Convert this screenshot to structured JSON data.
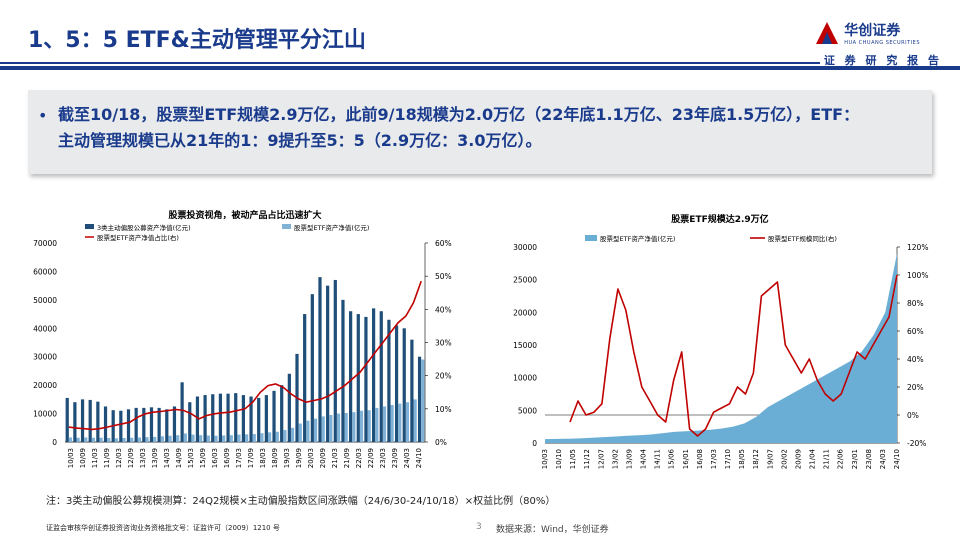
{
  "header": {
    "title": "1、5：5 ETF&主动管理平分江山",
    "logo_main": "华创证券",
    "logo_sub": "HUA CHUANG SECURITIES",
    "report_tag": "证 券 研 究 报 告"
  },
  "bullet": {
    "line1": "截至10/18，股票型ETF规模2.9万亿，此前9/18规模为2.0万亿（22年底1.1万亿、23年底1.5万亿），ETF：",
    "line2": "主动管理规模已从21年的1：9提升至5：5（2.9万亿：3.0万亿）。"
  },
  "note": "注：3类主动偏股公募规模测算：24Q2规模×主动偏股指数区间涨跌幅（24/6/30-24/10/18）×权益比例（80%）",
  "footer": {
    "license": "证监会审核华创证券投资咨询业务资格批文号：证监许可（2009）1210 号",
    "page": "3",
    "source": "数据来源：Wind，华创证券"
  },
  "colors": {
    "primary": "#1a3b8c",
    "dark_bar": "#1f4e79",
    "light_bar": "#7fb2d6",
    "line": "#c00000",
    "area": "#6aaed6"
  },
  "chart_data": [
    {
      "type": "bar",
      "title": "股票投资视角，被动产品占比迅速扩大",
      "legend": [
        "3类主动偏股公募资产净值(亿元)",
        "股票型ETF资产净值(亿元)",
        "股票型ETF资产净值占比(右)"
      ],
      "left_ylim": [
        0,
        70000
      ],
      "left_ticks": [
        "0",
        "10000",
        "20000",
        "30000",
        "40000",
        "50000",
        "60000",
        "70000"
      ],
      "right_ylim": [
        0,
        60
      ],
      "right_ticks": [
        "0%",
        "10%",
        "20%",
        "30%",
        "40%",
        "50%",
        "60%"
      ],
      "x_ticks": [
        "10/03",
        "10/09",
        "11/03",
        "11/09",
        "12/03",
        "12/09",
        "13/03",
        "13/09",
        "14/03",
        "14/09",
        "15/03",
        "15/09",
        "16/03",
        "16/09",
        "17/03",
        "17/09",
        "18/03",
        "18/09",
        "19/03",
        "19/09",
        "20/03",
        "20/09",
        "21/03",
        "21/09",
        "22/03",
        "22/09",
        "23/03",
        "23/09",
        "24/03",
        "24/10"
      ],
      "active": [
        15500,
        14000,
        15000,
        14800,
        14200,
        12500,
        11200,
        11000,
        11500,
        12000,
        12000,
        12200,
        12000,
        11500,
        12500,
        21000,
        14000,
        16000,
        16500,
        16800,
        17000,
        17000,
        17200,
        16500,
        16000,
        15500,
        16500,
        18000,
        20000,
        24000,
        31000,
        45000,
        52000,
        58000,
        55000,
        57000,
        50000,
        46000,
        45000,
        44000,
        47000,
        46000,
        43000,
        41000,
        40000,
        36000,
        30000
      ],
      "etf": [
        1600,
        1500,
        1600,
        1500,
        1500,
        1400,
        1300,
        1400,
        1500,
        1600,
        1700,
        1800,
        2000,
        2200,
        2400,
        3000,
        2600,
        2400,
        2300,
        2200,
        2300,
        2400,
        2600,
        2700,
        2800,
        3100,
        3400,
        3600,
        4200,
        5000,
        6500,
        7500,
        8200,
        9000,
        9500,
        10000,
        10200,
        10500,
        11000,
        11200,
        12000,
        12500,
        13000,
        13500,
        14000,
        15000,
        29000
      ],
      "ratio": [
        4.5,
        4.2,
        4.0,
        3.8,
        4.0,
        4.5,
        5.0,
        5.5,
        6.0,
        7.5,
        8.5,
        9.0,
        9.2,
        9.5,
        9.8,
        9.5,
        8.5,
        7.0,
        8.0,
        8.5,
        8.8,
        9.0,
        9.5,
        10.0,
        12.0,
        15.0,
        17.0,
        17.5,
        16.5,
        14.5,
        13.0,
        12.0,
        12.5,
        13.0,
        14.0,
        15.5,
        17.0,
        19.0,
        21.0,
        24.0,
        27.0,
        30.0,
        33.0,
        36.0,
        38.0,
        42.0,
        48.5
      ]
    },
    {
      "type": "area",
      "title": "股票ETF规模达2.9万亿",
      "legend": [
        "股票型ETF资产净值(亿元)",
        "股票型ETF规模同比(右)"
      ],
      "left_ylim": [
        0,
        30000
      ],
      "left_ticks": [
        "0",
        "5000",
        "10000",
        "15000",
        "20000",
        "25000",
        "30000"
      ],
      "right_ylim": [
        -20,
        120
      ],
      "right_ticks": [
        "-20%",
        "0%",
        "20%",
        "40%",
        "60%",
        "80%",
        "100%",
        "120%"
      ],
      "x_ticks": [
        "10/03",
        "10/10",
        "11/05",
        "11/12",
        "12/07",
        "13/02",
        "13/09",
        "14/04",
        "14/11",
        "15/06",
        "16/01",
        "16/08",
        "17/03",
        "17/10",
        "18/05",
        "18/12",
        "19/07",
        "20/02",
        "20/09",
        "21/04",
        "21/11",
        "22/06",
        "23/01",
        "23/08",
        "24/03",
        "24/10"
      ],
      "etf": [
        600,
        620,
        650,
        700,
        800,
        900,
        1000,
        1100,
        1200,
        1300,
        1500,
        1700,
        1800,
        1900,
        2000,
        2200,
        2500,
        3000,
        4000,
        5500,
        6500,
        7500,
        8500,
        9500,
        10500,
        11500,
        12500,
        14000,
        16500,
        20000,
        29000
      ],
      "yoy": [
        -5,
        10,
        0,
        2,
        8,
        55,
        90,
        75,
        45,
        20,
        10,
        0,
        -5,
        25,
        45,
        -10,
        -15,
        -10,
        2,
        5,
        8,
        20,
        15,
        30,
        85,
        90,
        95,
        50,
        40,
        30,
        40,
        25,
        15,
        10,
        15,
        30,
        45,
        40,
        50,
        60,
        70,
        100
      ]
    }
  ]
}
